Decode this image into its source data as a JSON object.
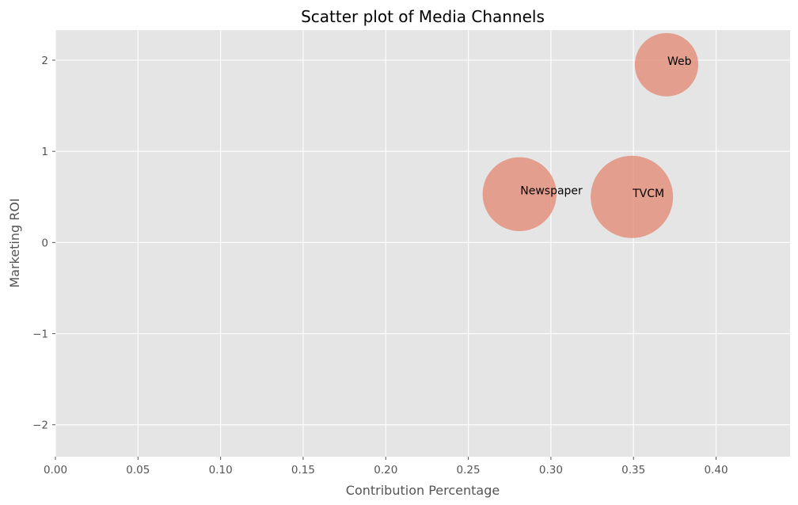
{
  "chart_data": {
    "type": "scatter",
    "title": "Scatter plot of Media Channels",
    "xlabel": "Contribution Percentage",
    "ylabel": "Marketing ROI",
    "xlim": [
      0,
      0.4448
    ],
    "ylim": [
      -2.35,
      2.33
    ],
    "xticks": [
      0.0,
      0.05,
      0.1,
      0.15,
      0.2,
      0.25,
      0.3,
      0.35,
      0.4
    ],
    "xtick_labels": [
      "0.00",
      "0.05",
      "0.10",
      "0.15",
      "0.20",
      "0.25",
      "0.30",
      "0.35",
      "0.40"
    ],
    "yticks": [
      -2,
      -1,
      0,
      1,
      2
    ],
    "ytick_labels": [
      "−2",
      "−1",
      "0",
      "1",
      "2"
    ],
    "grid": true,
    "background_color": "#e5e5e5",
    "marker_color": "#e2866f",
    "marker_alpha": 0.75,
    "points": [
      {
        "label": "Newspaper",
        "x": 0.281,
        "y": 0.53,
        "size": 0.281
      },
      {
        "label": "TVCM",
        "x": 0.349,
        "y": 0.5,
        "size": 0.349
      },
      {
        "label": "Web",
        "x": 0.37,
        "y": 1.95,
        "size": 0.207
      }
    ]
  }
}
